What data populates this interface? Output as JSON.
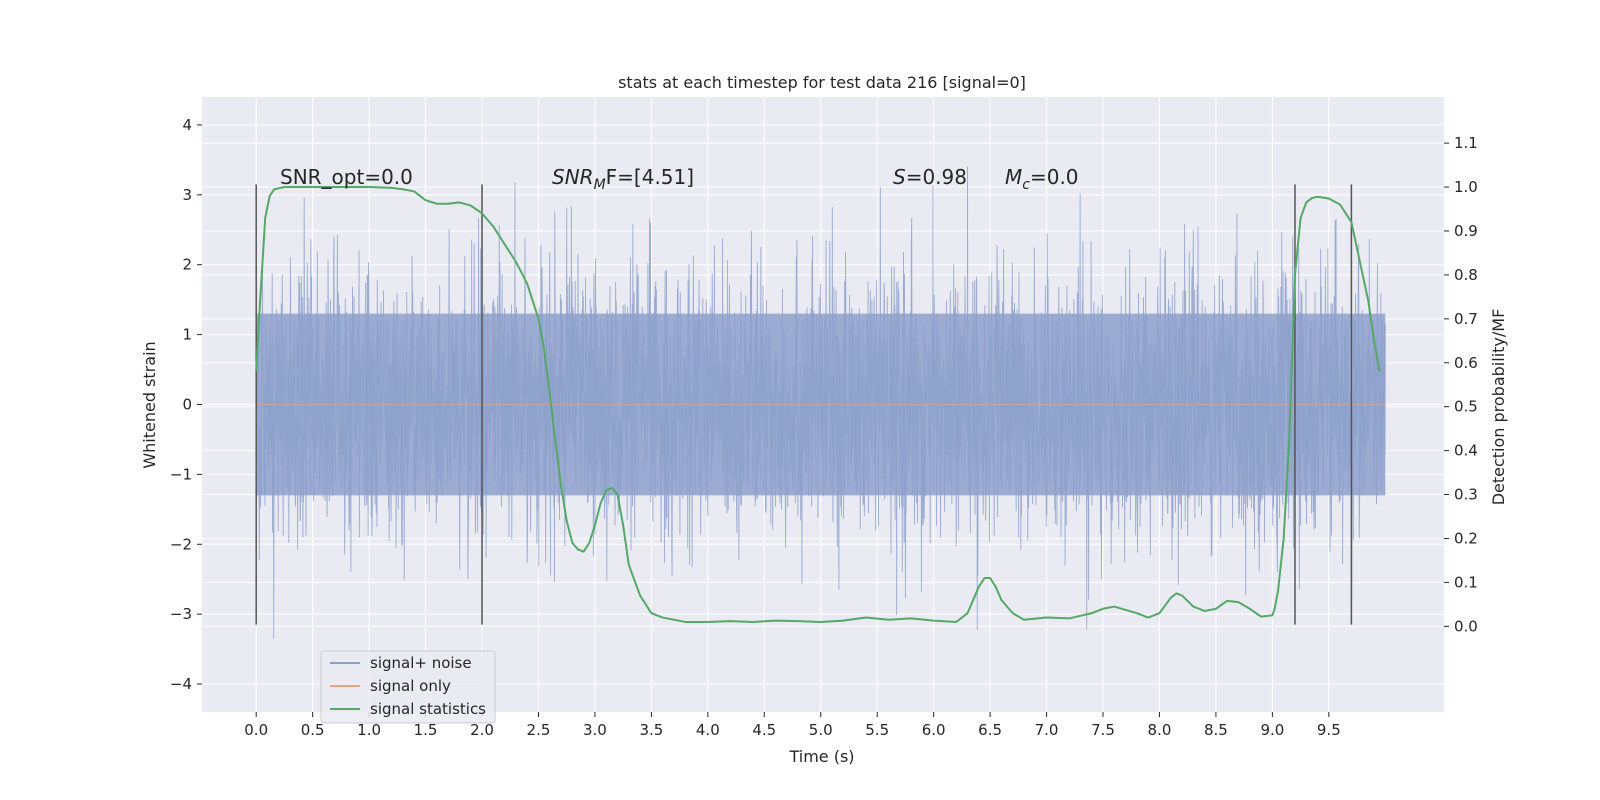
{
  "chart_data": {
    "type": "line",
    "title": "stats at each timestep for test data 216 [signal=0]",
    "xlabel": "Time (s)",
    "ylabel_left": "Whitened strain",
    "ylabel_right": "Detection probability/MF",
    "xlim": [
      -0.48,
      10.52
    ],
    "ylim_left": [
      -4.4,
      4.4
    ],
    "ylim_right": [
      -0.195,
      1.205
    ],
    "xticks": [
      "0.0",
      "0.5",
      "1.0",
      "1.5",
      "2.0",
      "2.5",
      "3.0",
      "3.5",
      "4.0",
      "4.5",
      "5.0",
      "5.5",
      "6.0",
      "6.5",
      "7.0",
      "7.5",
      "8.0",
      "8.5",
      "9.0",
      "9.5"
    ],
    "yticks_left": [
      "4",
      "3",
      "2",
      "1",
      "0",
      "−1",
      "−2",
      "−3",
      "−4"
    ],
    "yticks_right": [
      "1.1",
      "1.0",
      "0.9",
      "0.8",
      "0.7",
      "0.6",
      "0.5",
      "0.4",
      "0.3",
      "0.2",
      "0.1",
      "0.0"
    ],
    "grid": true,
    "background": "#eaeaf2",
    "annotations": {
      "snr_opt": "SNR_opt=0.0",
      "snr_mf_base": "SNR",
      "snr_mf_sub": "M",
      "snr_mf_rest": "F=[4.51]",
      "s_base": "S",
      "s_rest": "=0.98",
      "mc_base": "M",
      "mc_sub": "c",
      "mc_rest": "=0.0"
    },
    "window_markers": {
      "x": [
        0.0,
        2.0,
        9.2,
        9.7
      ],
      "y_range": [
        -3.15,
        3.15
      ],
      "color": "#555555"
    },
    "legend": {
      "placement": "lower-left",
      "items": [
        {
          "label": "signal+ noise",
          "color": "#8da0cb"
        },
        {
          "label": "signal only",
          "color": "#e5a383"
        },
        {
          "label": "signal statistics",
          "color": "#55a868"
        }
      ]
    },
    "series": [
      {
        "name": "signal+ noise",
        "axis": "left",
        "style": "dense-noise",
        "color": "#8da0cb",
        "x_range": [
          0.0,
          10.0
        ],
        "core_band": [
          -1.3,
          1.3
        ],
        "typical_extent": [
          -2.4,
          2.4
        ],
        "extremes": [
          -3.95,
          4.05
        ]
      },
      {
        "name": "signal only",
        "axis": "left",
        "color": "#e5a383",
        "x": [
          0.0,
          10.0
        ],
        "y": [
          0.0,
          0.0
        ]
      },
      {
        "name": "signal statistics",
        "axis": "right",
        "color": "#55a868",
        "x": [
          0.0,
          0.03,
          0.08,
          0.12,
          0.16,
          0.25,
          0.5,
          0.8,
          1.0,
          1.2,
          1.3,
          1.4,
          1.5,
          1.6,
          1.7,
          1.8,
          1.9,
          2.0,
          2.1,
          2.2,
          2.3,
          2.4,
          2.5,
          2.55,
          2.6,
          2.65,
          2.7,
          2.75,
          2.8,
          2.85,
          2.9,
          2.95,
          3.0,
          3.05,
          3.1,
          3.15,
          3.2,
          3.25,
          3.3,
          3.4,
          3.5,
          3.6,
          3.8,
          4.0,
          4.2,
          4.4,
          4.6,
          4.8,
          5.0,
          5.2,
          5.4,
          5.6,
          5.8,
          6.0,
          6.2,
          6.3,
          6.4,
          6.45,
          6.5,
          6.55,
          6.6,
          6.7,
          6.8,
          7.0,
          7.2,
          7.4,
          7.5,
          7.6,
          7.8,
          7.9,
          8.0,
          8.1,
          8.15,
          8.2,
          8.3,
          8.4,
          8.5,
          8.6,
          8.7,
          8.8,
          8.9,
          9.0,
          9.02,
          9.05,
          9.1,
          9.15,
          9.2,
          9.25,
          9.3,
          9.35,
          9.4,
          9.5,
          9.6,
          9.7,
          9.75,
          9.8,
          9.85,
          9.9,
          9.95
        ],
        "y": [
          0.58,
          0.72,
          0.93,
          0.98,
          0.995,
          1.0,
          1.0,
          1.0,
          1.0,
          0.998,
          0.995,
          0.99,
          0.97,
          0.962,
          0.962,
          0.965,
          0.958,
          0.94,
          0.91,
          0.87,
          0.83,
          0.78,
          0.7,
          0.63,
          0.53,
          0.42,
          0.32,
          0.24,
          0.19,
          0.175,
          0.17,
          0.19,
          0.23,
          0.28,
          0.31,
          0.315,
          0.3,
          0.23,
          0.14,
          0.07,
          0.03,
          0.02,
          0.01,
          0.01,
          0.012,
          0.01,
          0.013,
          0.012,
          0.01,
          0.013,
          0.02,
          0.015,
          0.018,
          0.013,
          0.01,
          0.03,
          0.09,
          0.11,
          0.11,
          0.09,
          0.06,
          0.03,
          0.015,
          0.02,
          0.018,
          0.03,
          0.04,
          0.045,
          0.03,
          0.02,
          0.03,
          0.065,
          0.075,
          0.07,
          0.045,
          0.035,
          0.04,
          0.058,
          0.055,
          0.04,
          0.022,
          0.025,
          0.04,
          0.08,
          0.2,
          0.43,
          0.8,
          0.93,
          0.965,
          0.975,
          0.978,
          0.974,
          0.96,
          0.92,
          0.86,
          0.8,
          0.74,
          0.65,
          0.58
        ]
      }
    ]
  }
}
